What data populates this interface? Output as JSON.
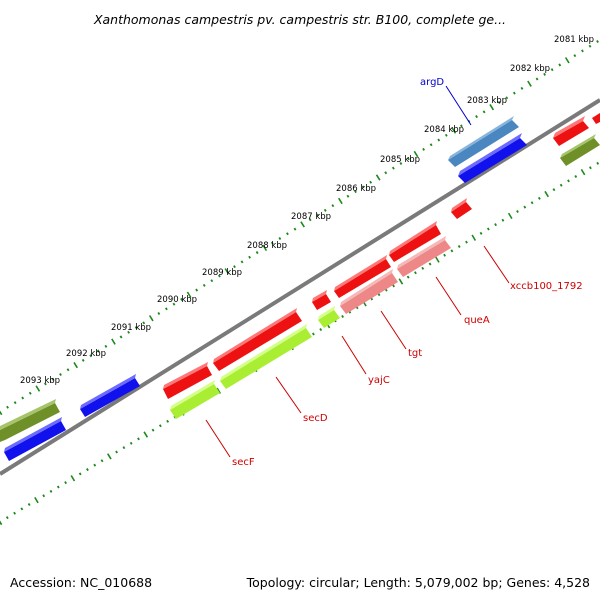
{
  "title": "Xanthomonas campestris pv. campestris str. B100, complete ge...",
  "footer": {
    "accession": "Accession: NC_010688",
    "topology": "Topology: circular; Length: 5,079,002 bp; Genes: 4,528"
  },
  "ticks": [
    "2081 kbp",
    "2082 kbp",
    "2083 kbp",
    "2084 kbp",
    "2085 kbp",
    "2086 kbp",
    "2087 kbp",
    "2088 kbp",
    "2089 kbp",
    "2090 kbp",
    "2091 kbp",
    "2092 kbp",
    "2093 kbp"
  ],
  "feature_labels": [
    {
      "id": "argD",
      "text": "argD",
      "color": "#0000cc"
    },
    {
      "id": "xccb100_1792",
      "text": "xccb100_1792",
      "color": "#cc0000"
    },
    {
      "id": "queA",
      "text": "queA",
      "color": "#cc0000"
    },
    {
      "id": "tgt",
      "text": "tgt",
      "color": "#cc0000"
    },
    {
      "id": "yajC",
      "text": "yajC",
      "color": "#cc0000"
    },
    {
      "id": "secD",
      "text": "secD",
      "color": "#cc0000"
    },
    {
      "id": "secF",
      "text": "secF",
      "color": "#cc0000"
    }
  ],
  "colors": {
    "backbone": "#7a7a7a",
    "tick": "#1a8a1a",
    "red": "#ee1111",
    "blue": "#1111ee",
    "steel": "#4a86c0",
    "olive": "#6f8f28",
    "lime": "#aaee33",
    "pink": "#ee8888"
  }
}
